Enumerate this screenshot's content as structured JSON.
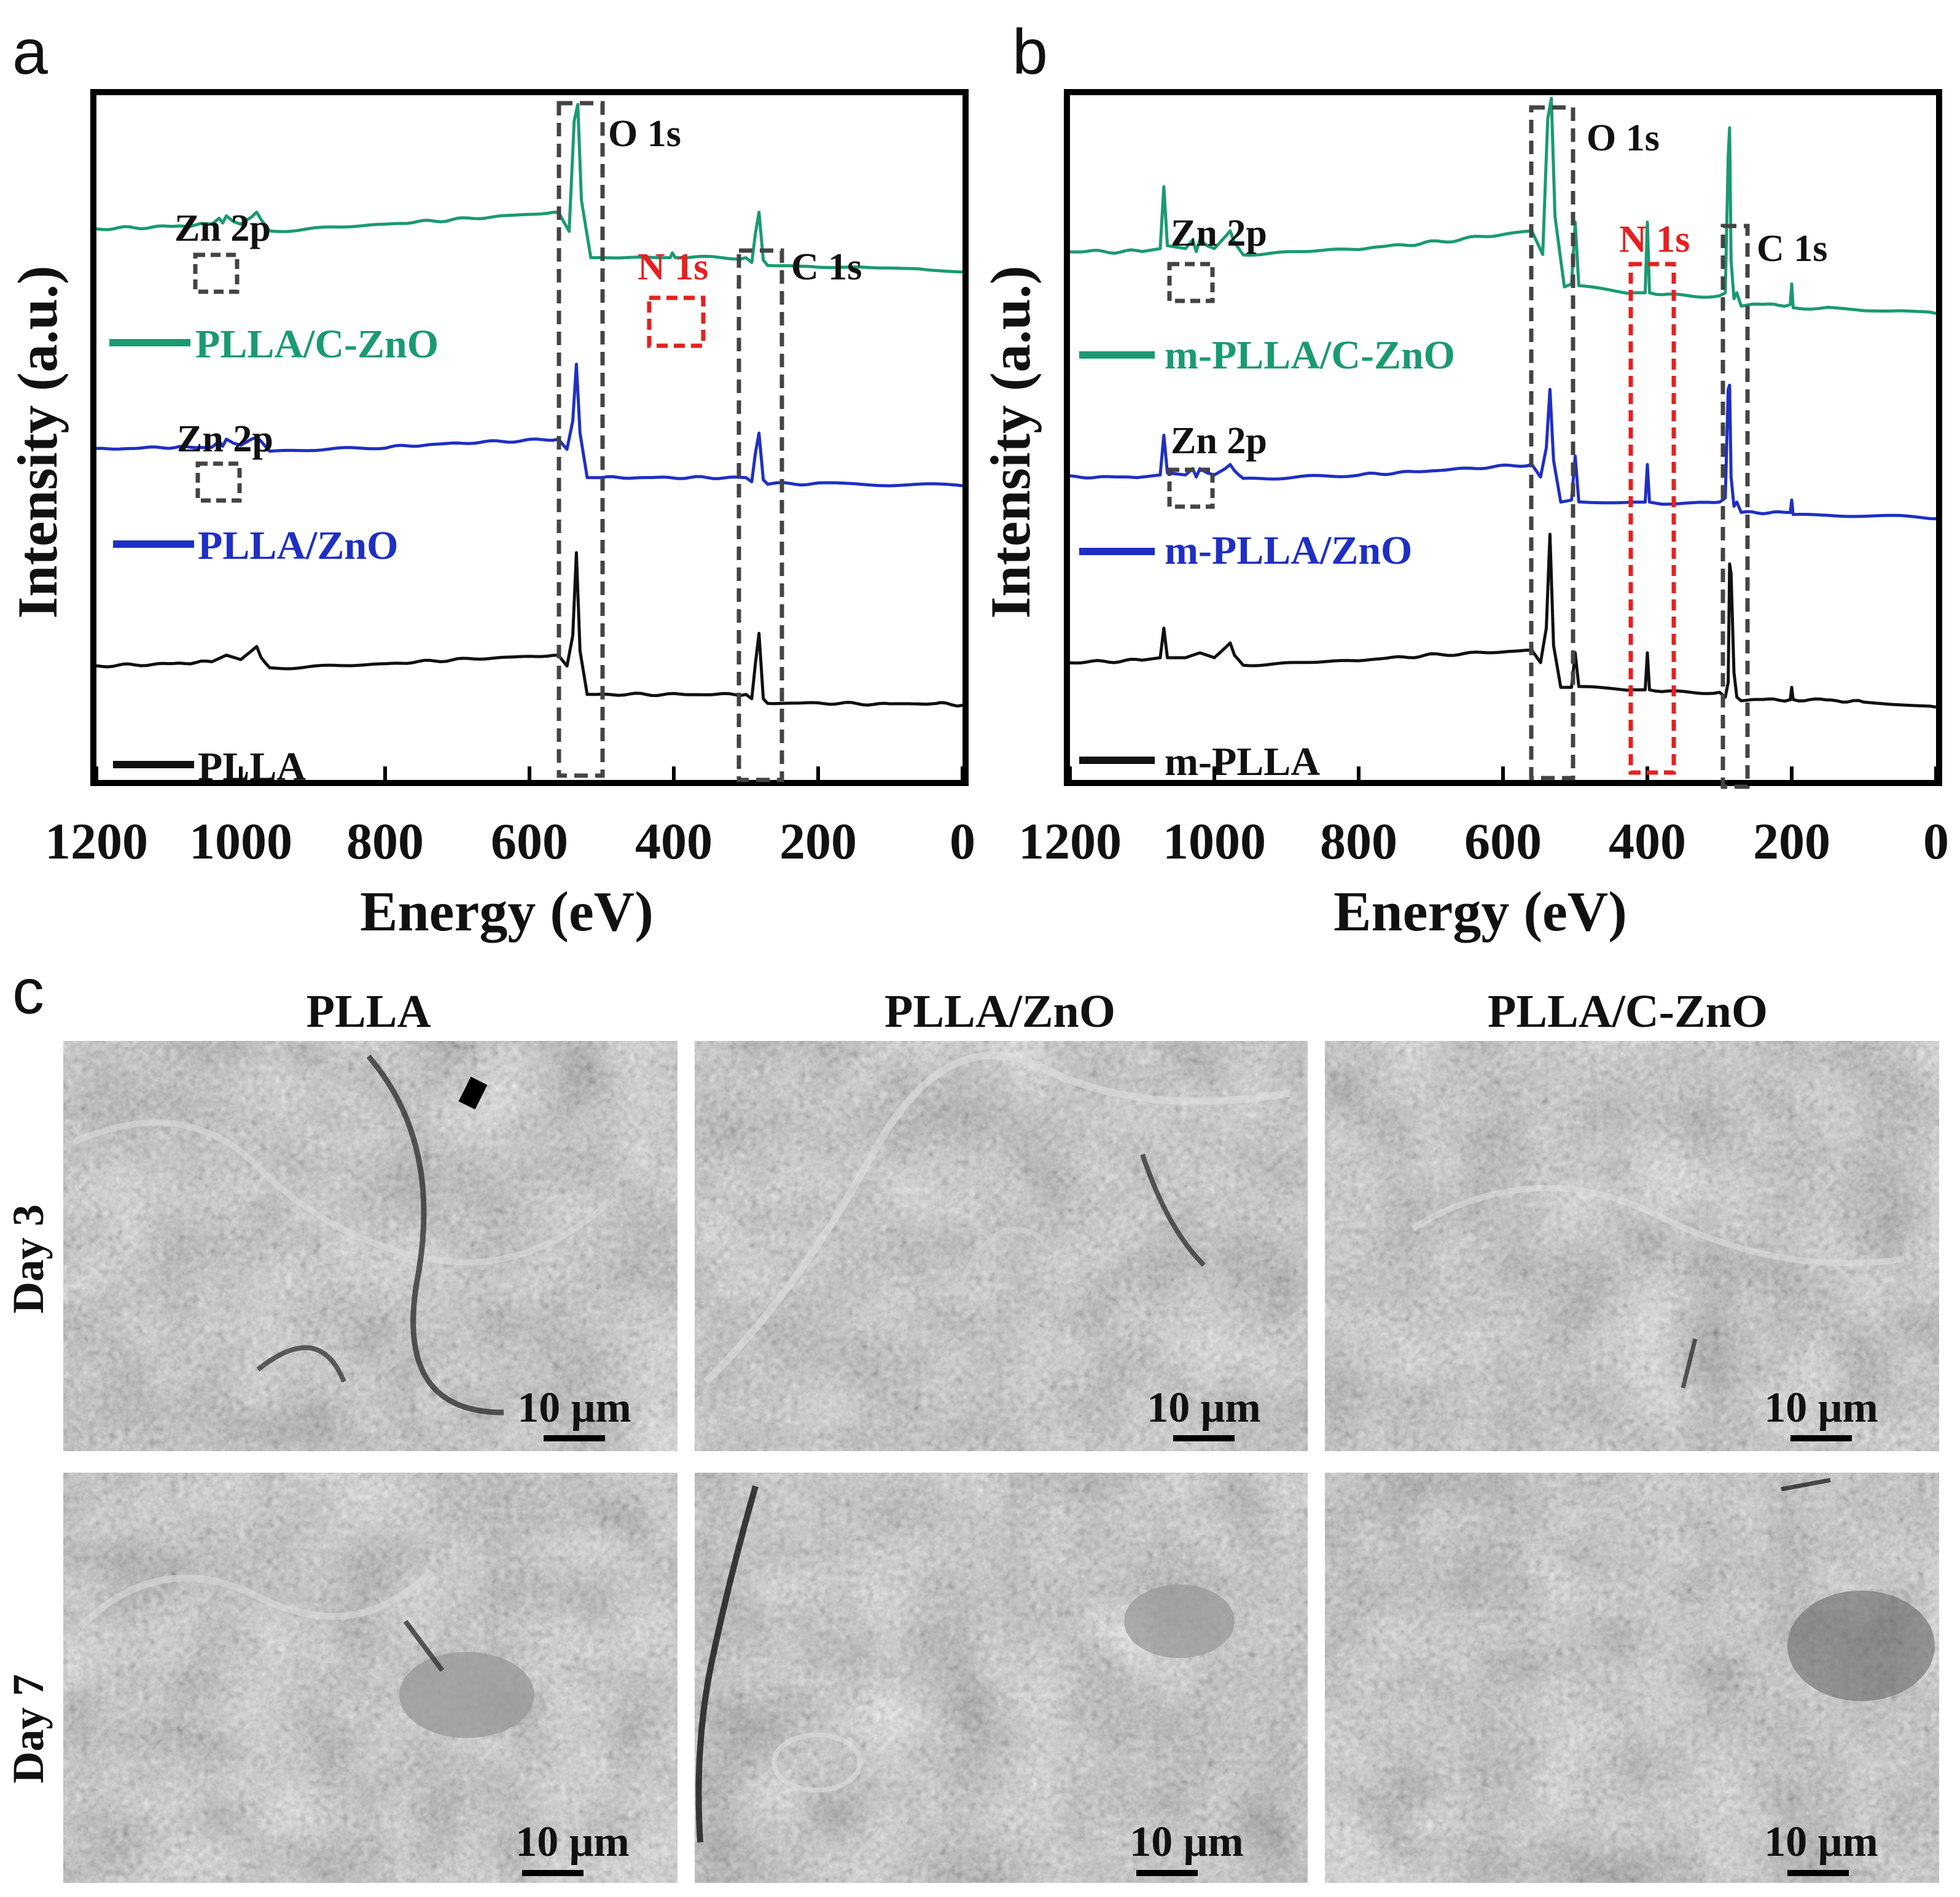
{
  "chart_data": [
    {
      "panel": "a",
      "type": "line",
      "xlabel": "Energy (eV)",
      "ylabel": "Intensity  (a.u.)",
      "xlim": [
        1200,
        0
      ],
      "xticks": [
        "1200",
        "1000",
        "800",
        "600",
        "400",
        "200",
        "0"
      ],
      "series": [
        {
          "name": "PLLA/C-ZnO",
          "color": "#1a9a73",
          "x": [
            1200,
            1100,
            1040,
            1030,
            1025,
            1020,
            1010,
            1000,
            985,
            978,
            972,
            960,
            800,
            700,
            560,
            545,
            538,
            533,
            528,
            515,
            500,
            420,
            405,
            402,
            398,
            380,
            300,
            292,
            287,
            282,
            276,
            270,
            200,
            120,
            50,
            0
          ],
          "y": [
            48,
            49,
            50,
            52.5,
            50.5,
            53.5,
            51,
            50,
            53,
            55,
            52,
            47,
            50,
            52,
            55,
            47,
            93,
            100,
            60,
            36,
            36,
            36,
            36,
            38,
            36,
            36,
            36,
            34,
            46,
            55,
            35,
            33,
            32,
            32,
            31,
            30
          ]
        },
        {
          "name": "PLLA/ZnO",
          "color": "#1f2fc4",
          "x": [
            1200,
            1100,
            1040,
            1030,
            1025,
            1020,
            1010,
            1000,
            985,
            978,
            972,
            960,
            800,
            700,
            560,
            548,
            540,
            535,
            530,
            520,
            500,
            400,
            300,
            292,
            287,
            282,
            276,
            270,
            200,
            150,
            100,
            50,
            0
          ],
          "y": [
            48,
            49,
            49,
            52,
            49.5,
            53,
            51,
            50,
            53,
            54,
            52,
            47,
            49,
            51,
            53,
            48,
            62,
            90,
            56,
            34,
            34,
            34,
            34,
            32,
            46,
            56,
            33,
            31,
            31,
            31,
            30.5,
            30.5,
            30
          ]
        },
        {
          "name": "PLLA",
          "color": "#111111",
          "x": [
            1200,
            1100,
            1040,
            1020,
            1000,
            985,
            978,
            972,
            960,
            800,
            700,
            560,
            548,
            540,
            535,
            530,
            520,
            500,
            400,
            300,
            292,
            287,
            282,
            276,
            270,
            200,
            100,
            50,
            30,
            0
          ],
          "y": [
            48,
            49,
            50,
            53,
            51,
            55,
            57,
            52,
            47,
            49,
            51,
            53,
            48,
            62,
            100,
            55,
            35,
            35,
            35,
            35,
            33,
            49,
            63,
            33,
            31,
            31,
            30.5,
            30.5,
            31,
            30
          ]
        }
      ],
      "annotations": [
        {
          "label": "O 1s",
          "color": "#111111"
        },
        {
          "label": "C 1s",
          "color": "#111111"
        },
        {
          "label": "N 1s",
          "color": "#e62020"
        },
        {
          "label": "Zn 2p",
          "color": "#111111"
        },
        {
          "label": "Zn 2p",
          "color": "#111111"
        }
      ]
    },
    {
      "panel": "b",
      "type": "line",
      "xlabel": "Energy (eV)",
      "ylabel": "Intensity  (a.u.)",
      "xlim": [
        1200,
        0
      ],
      "xticks": [
        "1200",
        "1000",
        "800",
        "600",
        "400",
        "200",
        "0"
      ],
      "series": [
        {
          "name": "m-PLLA/C-ZnO",
          "color": "#1a9a73",
          "x": [
            1200,
            1100,
            1075,
            1070,
            1065,
            1040,
            1030,
            1025,
            1020,
            1010,
            1000,
            985,
            978,
            972,
            960,
            800,
            700,
            560,
            545,
            538,
            533,
            528,
            515,
            505,
            500,
            495,
            420,
            403,
            400,
            397,
            380,
            300,
            292,
            288,
            286,
            284,
            280,
            276,
            270,
            202,
            200,
            198,
            150,
            100,
            50,
            0
          ],
          "y": [
            48,
            48,
            49,
            70,
            50,
            49,
            52,
            48,
            52,
            50,
            49,
            53,
            55,
            51,
            47,
            49,
            51,
            55,
            47,
            93,
            100,
            60,
            36,
            37,
            58,
            36,
            34,
            34,
            58,
            34,
            33,
            33,
            34,
            80,
            90,
            45,
            32,
            34,
            30,
            30,
            37,
            29,
            29,
            28,
            28,
            27
          ]
        },
        {
          "name": "m-PLLA/ZnO",
          "color": "#1f2fc4",
          "x": [
            1200,
            1100,
            1075,
            1070,
            1065,
            1040,
            1030,
            1025,
            1020,
            1010,
            1000,
            985,
            978,
            972,
            960,
            800,
            700,
            560,
            548,
            540,
            535,
            530,
            520,
            505,
            500,
            495,
            420,
            403,
            400,
            397,
            380,
            300,
            292,
            288,
            286,
            284,
            280,
            276,
            270,
            202,
            200,
            198,
            150,
            100,
            50,
            0
          ],
          "y": [
            48,
            48,
            49,
            68,
            50,
            49,
            52,
            48,
            52,
            50,
            49,
            52,
            54,
            51,
            47,
            49,
            51,
            54,
            48,
            62,
            90,
            56,
            36,
            37,
            58,
            36,
            36,
            36,
            54,
            36,
            35,
            36,
            38,
            90,
            92,
            48,
            34,
            36,
            31,
            31,
            37,
            30,
            30,
            29.5,
            29,
            28
          ]
        },
        {
          "name": "m-PLLA",
          "color": "#111111",
          "x": [
            1200,
            1100,
            1075,
            1070,
            1065,
            1040,
            1020,
            1000,
            985,
            978,
            972,
            960,
            800,
            700,
            560,
            548,
            540,
            535,
            530,
            520,
            505,
            500,
            495,
            420,
            403,
            400,
            397,
            380,
            300,
            292,
            288,
            286,
            284,
            280,
            276,
            270,
            202,
            200,
            198,
            160,
            100,
            50,
            0
          ],
          "y": [
            48,
            49,
            50,
            62,
            50,
            50,
            52,
            50,
            54,
            56,
            51,
            47,
            49,
            51,
            53,
            48,
            62,
            100,
            55,
            38,
            38,
            52,
            38,
            37,
            37,
            52,
            37,
            36,
            36,
            34,
            40,
            88,
            84,
            44,
            34,
            33,
            33,
            38,
            33,
            33,
            32,
            31,
            30
          ]
        }
      ],
      "annotations": [
        {
          "label": "O 1s",
          "color": "#111111"
        },
        {
          "label": "C 1s",
          "color": "#111111"
        },
        {
          "label": "N 1s",
          "color": "#e62020"
        },
        {
          "label": "Zn 2p",
          "color": "#111111"
        },
        {
          "label": "Zn 2p",
          "color": "#111111"
        }
      ]
    }
  ],
  "panels": {
    "a": "a",
    "b": "b",
    "c": "c"
  },
  "sem": {
    "columns": [
      "PLLA",
      "PLLA/ZnO",
      "PLLA/C-ZnO"
    ],
    "rows": [
      "Day 3",
      "Day 7"
    ],
    "scale_bar": "10 μm"
  },
  "colors": {
    "green": "#1a9a73",
    "blue": "#1f2fc4",
    "black": "#111111",
    "red": "#e62020",
    "dash": "#444444"
  }
}
